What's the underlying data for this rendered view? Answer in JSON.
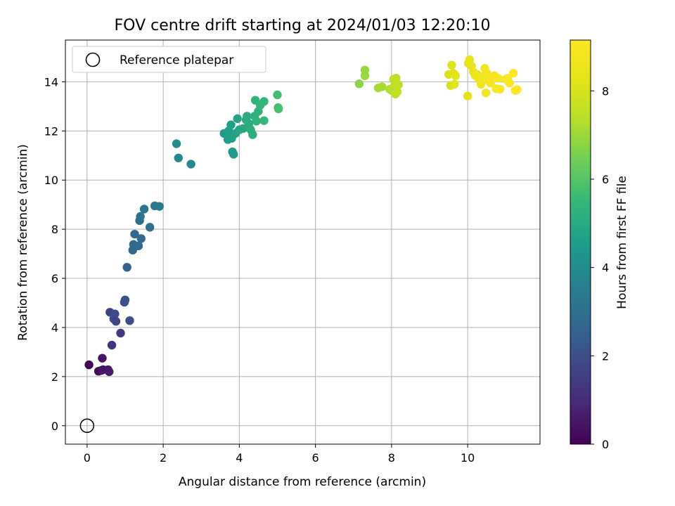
{
  "chart_data": {
    "type": "scatter",
    "title": "FOV centre drift starting at 2024/01/03 12:20:10",
    "xlabel": "Angular distance from reference (arcmin)",
    "ylabel": "Rotation from reference (arcmin)",
    "xlim": [
      -0.57,
      11.9
    ],
    "ylim": [
      -0.75,
      15.7
    ],
    "xticks": [
      0,
      2,
      4,
      6,
      8,
      10
    ],
    "yticks": [
      0,
      2,
      4,
      6,
      8,
      10,
      12,
      14
    ],
    "grid": true,
    "legend": {
      "position": "upper-left",
      "entries": [
        "Reference platepar"
      ]
    },
    "reference_point": {
      "x": 0,
      "y": 0,
      "label": "Reference platepar"
    },
    "colorbar": {
      "label": "Hours from first FF file",
      "colormap": "viridis",
      "min": 0,
      "max": 9.15,
      "ticks": [
        0,
        2,
        4,
        6,
        8
      ]
    },
    "points": [
      {
        "x": 0.05,
        "y": 2.48,
        "c": 0.05
      },
      {
        "x": 0.3,
        "y": 2.22,
        "c": 0.2
      },
      {
        "x": 0.37,
        "y": 2.25,
        "c": 0.3
      },
      {
        "x": 0.4,
        "y": 2.75,
        "c": 0.4
      },
      {
        "x": 0.42,
        "y": 2.28,
        "c": 0.45
      },
      {
        "x": 0.55,
        "y": 2.28,
        "c": 0.5
      },
      {
        "x": 0.58,
        "y": 2.2,
        "c": 0.6
      },
      {
        "x": 0.6,
        "y": 4.62,
        "c": 1.6
      },
      {
        "x": 0.65,
        "y": 3.28,
        "c": 1.2
      },
      {
        "x": 0.7,
        "y": 4.35,
        "c": 1.8
      },
      {
        "x": 0.73,
        "y": 4.55,
        "c": 1.9
      },
      {
        "x": 0.76,
        "y": 4.25,
        "c": 1.7
      },
      {
        "x": 0.88,
        "y": 3.77,
        "c": 1.4
      },
      {
        "x": 0.98,
        "y": 5.03,
        "c": 2.0
      },
      {
        "x": 1.0,
        "y": 5.12,
        "c": 2.1
      },
      {
        "x": 1.05,
        "y": 6.45,
        "c": 2.5
      },
      {
        "x": 1.12,
        "y": 4.28,
        "c": 1.95
      },
      {
        "x": 1.2,
        "y": 7.15,
        "c": 2.7
      },
      {
        "x": 1.22,
        "y": 7.38,
        "c": 2.8
      },
      {
        "x": 1.25,
        "y": 7.8,
        "c": 2.9
      },
      {
        "x": 1.35,
        "y": 7.32,
        "c": 2.8
      },
      {
        "x": 1.38,
        "y": 8.35,
        "c": 3.0
      },
      {
        "x": 1.4,
        "y": 8.52,
        "c": 3.1
      },
      {
        "x": 1.42,
        "y": 7.62,
        "c": 2.9
      },
      {
        "x": 1.5,
        "y": 8.82,
        "c": 3.2
      },
      {
        "x": 1.65,
        "y": 8.08,
        "c": 3.1
      },
      {
        "x": 1.78,
        "y": 8.95,
        "c": 3.3
      },
      {
        "x": 1.9,
        "y": 8.93,
        "c": 3.4
      },
      {
        "x": 2.35,
        "y": 11.48,
        "c": 4.0
      },
      {
        "x": 2.4,
        "y": 10.9,
        "c": 3.9
      },
      {
        "x": 2.73,
        "y": 10.65,
        "c": 3.85
      },
      {
        "x": 3.6,
        "y": 11.9,
        "c": 4.5
      },
      {
        "x": 3.7,
        "y": 11.65,
        "c": 4.6
      },
      {
        "x": 3.72,
        "y": 12.0,
        "c": 4.55
      },
      {
        "x": 3.78,
        "y": 12.25,
        "c": 4.6
      },
      {
        "x": 3.8,
        "y": 11.7,
        "c": 4.65
      },
      {
        "x": 3.82,
        "y": 11.15,
        "c": 4.4
      },
      {
        "x": 3.85,
        "y": 11.05,
        "c": 4.45
      },
      {
        "x": 3.9,
        "y": 11.9,
        "c": 4.7
      },
      {
        "x": 3.95,
        "y": 12.5,
        "c": 4.8
      },
      {
        "x": 4.0,
        "y": 12.05,
        "c": 4.85
      },
      {
        "x": 4.1,
        "y": 12.1,
        "c": 4.9
      },
      {
        "x": 4.18,
        "y": 12.45,
        "c": 5.0
      },
      {
        "x": 4.2,
        "y": 12.6,
        "c": 5.05
      },
      {
        "x": 4.25,
        "y": 12.3,
        "c": 5.1
      },
      {
        "x": 4.3,
        "y": 12.05,
        "c": 5.15
      },
      {
        "x": 4.35,
        "y": 11.85,
        "c": 5.2
      },
      {
        "x": 4.4,
        "y": 12.6,
        "c": 5.25
      },
      {
        "x": 4.42,
        "y": 13.25,
        "c": 5.3
      },
      {
        "x": 4.45,
        "y": 12.4,
        "c": 5.3
      },
      {
        "x": 4.5,
        "y": 12.8,
        "c": 5.35
      },
      {
        "x": 4.55,
        "y": 13.05,
        "c": 5.4
      },
      {
        "x": 4.65,
        "y": 13.2,
        "c": 5.45
      },
      {
        "x": 4.65,
        "y": 12.42,
        "c": 5.5
      },
      {
        "x": 5.0,
        "y": 13.47,
        "c": 5.7
      },
      {
        "x": 5.02,
        "y": 12.95,
        "c": 5.75
      },
      {
        "x": 5.03,
        "y": 12.9,
        "c": 5.8
      },
      {
        "x": 7.15,
        "y": 13.92,
        "c": 6.8
      },
      {
        "x": 7.3,
        "y": 14.48,
        "c": 6.9
      },
      {
        "x": 7.3,
        "y": 14.25,
        "c": 6.95
      },
      {
        "x": 7.65,
        "y": 13.75,
        "c": 7.1
      },
      {
        "x": 7.75,
        "y": 13.8,
        "c": 7.15
      },
      {
        "x": 7.95,
        "y": 13.7,
        "c": 7.3
      },
      {
        "x": 8.0,
        "y": 13.65,
        "c": 7.35
      },
      {
        "x": 8.05,
        "y": 14.1,
        "c": 7.4
      },
      {
        "x": 8.08,
        "y": 13.85,
        "c": 7.45
      },
      {
        "x": 8.1,
        "y": 13.5,
        "c": 7.5
      },
      {
        "x": 8.12,
        "y": 14.15,
        "c": 7.55
      },
      {
        "x": 8.15,
        "y": 13.6,
        "c": 7.6
      },
      {
        "x": 8.18,
        "y": 13.88,
        "c": 7.65
      },
      {
        "x": 9.5,
        "y": 14.3,
        "c": 8.0
      },
      {
        "x": 9.55,
        "y": 13.85,
        "c": 8.05
      },
      {
        "x": 9.58,
        "y": 14.68,
        "c": 8.1
      },
      {
        "x": 9.62,
        "y": 14.35,
        "c": 8.15
      },
      {
        "x": 9.65,
        "y": 13.9,
        "c": 8.2
      },
      {
        "x": 9.68,
        "y": 14.25,
        "c": 8.25
      },
      {
        "x": 10.0,
        "y": 13.42,
        "c": 8.3
      },
      {
        "x": 10.02,
        "y": 14.75,
        "c": 8.35
      },
      {
        "x": 10.05,
        "y": 14.9,
        "c": 8.4
      },
      {
        "x": 10.1,
        "y": 14.65,
        "c": 8.45
      },
      {
        "x": 10.15,
        "y": 14.4,
        "c": 8.5
      },
      {
        "x": 10.2,
        "y": 14.25,
        "c": 8.55
      },
      {
        "x": 10.25,
        "y": 14.3,
        "c": 8.6
      },
      {
        "x": 10.3,
        "y": 14.1,
        "c": 8.65
      },
      {
        "x": 10.35,
        "y": 13.9,
        "c": 8.7
      },
      {
        "x": 10.4,
        "y": 14.22,
        "c": 8.72
      },
      {
        "x": 10.45,
        "y": 14.55,
        "c": 8.75
      },
      {
        "x": 10.48,
        "y": 13.55,
        "c": 8.8
      },
      {
        "x": 10.5,
        "y": 14.35,
        "c": 8.82
      },
      {
        "x": 10.55,
        "y": 14.05,
        "c": 8.85
      },
      {
        "x": 10.6,
        "y": 13.95,
        "c": 8.88
      },
      {
        "x": 10.65,
        "y": 14.2,
        "c": 8.9
      },
      {
        "x": 10.7,
        "y": 14.25,
        "c": 8.92
      },
      {
        "x": 10.75,
        "y": 13.72,
        "c": 8.95
      },
      {
        "x": 10.8,
        "y": 14.15,
        "c": 8.97
      },
      {
        "x": 10.85,
        "y": 13.7,
        "c": 9.0
      },
      {
        "x": 11.0,
        "y": 14.1,
        "c": 9.02
      },
      {
        "x": 11.05,
        "y": 14.15,
        "c": 9.05
      },
      {
        "x": 11.1,
        "y": 13.95,
        "c": 9.07
      },
      {
        "x": 11.2,
        "y": 14.35,
        "c": 9.1
      },
      {
        "x": 11.25,
        "y": 13.65,
        "c": 9.12
      },
      {
        "x": 11.3,
        "y": 13.68,
        "c": 9.15
      }
    ]
  }
}
